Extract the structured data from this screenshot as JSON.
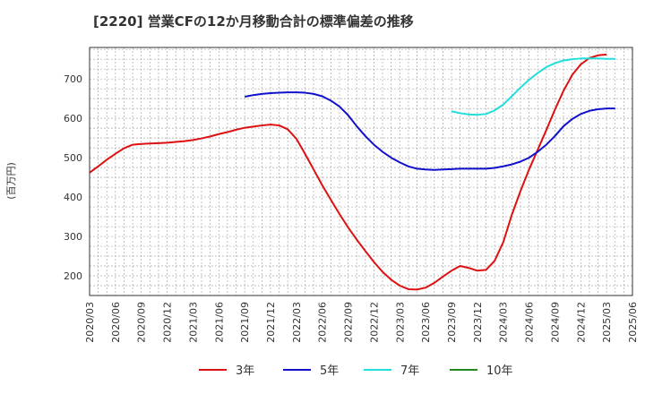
{
  "chart_data": {
    "type": "line",
    "title": "[2220]  営業CFの12か月移動合計の標準偏差の推移",
    "ylabel": "(百万円)",
    "xlabel": "",
    "x_ticks": [
      "2020/03",
      "2020/06",
      "2020/09",
      "2020/12",
      "2021/03",
      "2021/06",
      "2021/09",
      "2021/12",
      "2022/03",
      "2022/06",
      "2022/09",
      "2022/12",
      "2023/03",
      "2023/06",
      "2023/09",
      "2023/12",
      "2024/03",
      "2024/06",
      "2024/09",
      "2024/12",
      "2025/03",
      "2025/06"
    ],
    "y_ticks": [
      200,
      300,
      400,
      500,
      600,
      700
    ],
    "xlim": [
      0,
      63
    ],
    "ylim": [
      150,
      780
    ],
    "grid": true,
    "legend_position": "bottom",
    "series": [
      {
        "name": "3年",
        "color": "#dd1111",
        "points": [
          [
            0,
            462
          ],
          [
            1,
            478
          ],
          [
            2,
            495
          ],
          [
            3,
            510
          ],
          [
            4,
            524
          ],
          [
            5,
            533
          ],
          [
            6,
            535
          ],
          [
            7,
            536
          ],
          [
            8,
            537
          ],
          [
            9,
            538
          ],
          [
            10,
            540
          ],
          [
            11,
            542
          ],
          [
            12,
            545
          ],
          [
            13,
            549
          ],
          [
            14,
            554
          ],
          [
            15,
            560
          ],
          [
            16,
            565
          ],
          [
            17,
            571
          ],
          [
            18,
            576
          ],
          [
            19,
            579
          ],
          [
            20,
            582
          ],
          [
            21,
            584
          ],
          [
            22,
            582
          ],
          [
            23,
            572
          ],
          [
            24,
            548
          ],
          [
            25,
            510
          ],
          [
            26,
            470
          ],
          [
            27,
            430
          ],
          [
            28,
            393
          ],
          [
            29,
            357
          ],
          [
            30,
            323
          ],
          [
            31,
            292
          ],
          [
            32,
            263
          ],
          [
            33,
            235
          ],
          [
            34,
            210
          ],
          [
            35,
            190
          ],
          [
            36,
            175
          ],
          [
            37,
            166
          ],
          [
            38,
            165
          ],
          [
            39,
            170
          ],
          [
            40,
            182
          ],
          [
            41,
            198
          ],
          [
            42,
            213
          ],
          [
            43,
            225
          ],
          [
            44,
            220
          ],
          [
            45,
            213
          ],
          [
            46,
            215
          ],
          [
            47,
            238
          ],
          [
            48,
            285
          ],
          [
            49,
            355
          ],
          [
            50,
            415
          ],
          [
            51,
            470
          ],
          [
            52,
            520
          ],
          [
            53,
            570
          ],
          [
            54,
            622
          ],
          [
            55,
            670
          ],
          [
            56,
            710
          ],
          [
            57,
            737
          ],
          [
            58,
            753
          ],
          [
            59,
            760
          ],
          [
            60,
            762
          ]
        ]
      },
      {
        "name": "5年",
        "color": "#1111cc",
        "points": [
          [
            18,
            655
          ],
          [
            19,
            659
          ],
          [
            20,
            662
          ],
          [
            21,
            664
          ],
          [
            22,
            665
          ],
          [
            23,
            666
          ],
          [
            24,
            666
          ],
          [
            25,
            665
          ],
          [
            26,
            662
          ],
          [
            27,
            656
          ],
          [
            28,
            645
          ],
          [
            29,
            630
          ],
          [
            30,
            608
          ],
          [
            31,
            580
          ],
          [
            32,
            555
          ],
          [
            33,
            533
          ],
          [
            34,
            515
          ],
          [
            35,
            500
          ],
          [
            36,
            488
          ],
          [
            37,
            478
          ],
          [
            38,
            472
          ],
          [
            39,
            470
          ],
          [
            40,
            469
          ],
          [
            41,
            470
          ],
          [
            42,
            471
          ],
          [
            43,
            472
          ],
          [
            44,
            472
          ],
          [
            45,
            472
          ],
          [
            46,
            472
          ],
          [
            47,
            474
          ],
          [
            48,
            478
          ],
          [
            49,
            483
          ],
          [
            50,
            490
          ],
          [
            51,
            500
          ],
          [
            52,
            515
          ],
          [
            53,
            533
          ],
          [
            54,
            555
          ],
          [
            55,
            580
          ],
          [
            56,
            598
          ],
          [
            57,
            611
          ],
          [
            58,
            619
          ],
          [
            59,
            623
          ],
          [
            60,
            625
          ],
          [
            61,
            625
          ]
        ]
      },
      {
        "name": "7年",
        "color": "#22dddd",
        "points": [
          [
            42,
            618
          ],
          [
            43,
            613
          ],
          [
            44,
            610
          ],
          [
            45,
            609
          ],
          [
            46,
            611
          ],
          [
            47,
            620
          ],
          [
            48,
            635
          ],
          [
            49,
            656
          ],
          [
            50,
            678
          ],
          [
            51,
            698
          ],
          [
            52,
            715
          ],
          [
            53,
            730
          ],
          [
            54,
            740
          ],
          [
            55,
            747
          ],
          [
            56,
            750
          ],
          [
            57,
            752
          ],
          [
            58,
            752
          ],
          [
            59,
            752
          ],
          [
            60,
            751
          ],
          [
            61,
            751
          ]
        ]
      },
      {
        "name": "10年",
        "color": "#228822",
        "points": []
      }
    ]
  }
}
